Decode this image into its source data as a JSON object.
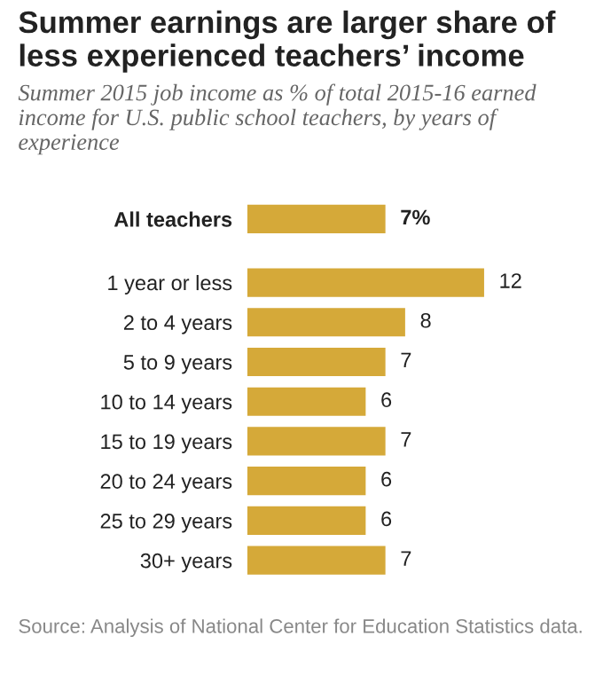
{
  "chart_data": {
    "type": "bar",
    "orientation": "horizontal",
    "title": "Summer earnings are larger share of less experienced teachers’ income",
    "subtitle": "Summer 2015 job income as % of total 2015-16 earned income for U.S. public school teachers, by years of experience",
    "categories": [
      "All teachers",
      "1 year or less",
      "2 to 4 years",
      "5 to 9 years",
      "10 to 14 years",
      "15 to 19 years",
      "20 to 24 years",
      "25 to 29 years",
      "30+ years"
    ],
    "values": [
      7,
      12,
      8,
      7,
      6,
      7,
      6,
      6,
      7
    ],
    "value_labels": [
      "7%",
      "12",
      "8",
      "7",
      "6",
      "7",
      "6",
      "6",
      "7"
    ],
    "color": "#d5a939",
    "annotations": [
      "Source: Analysis of National Center for Education Statistics data."
    ]
  }
}
